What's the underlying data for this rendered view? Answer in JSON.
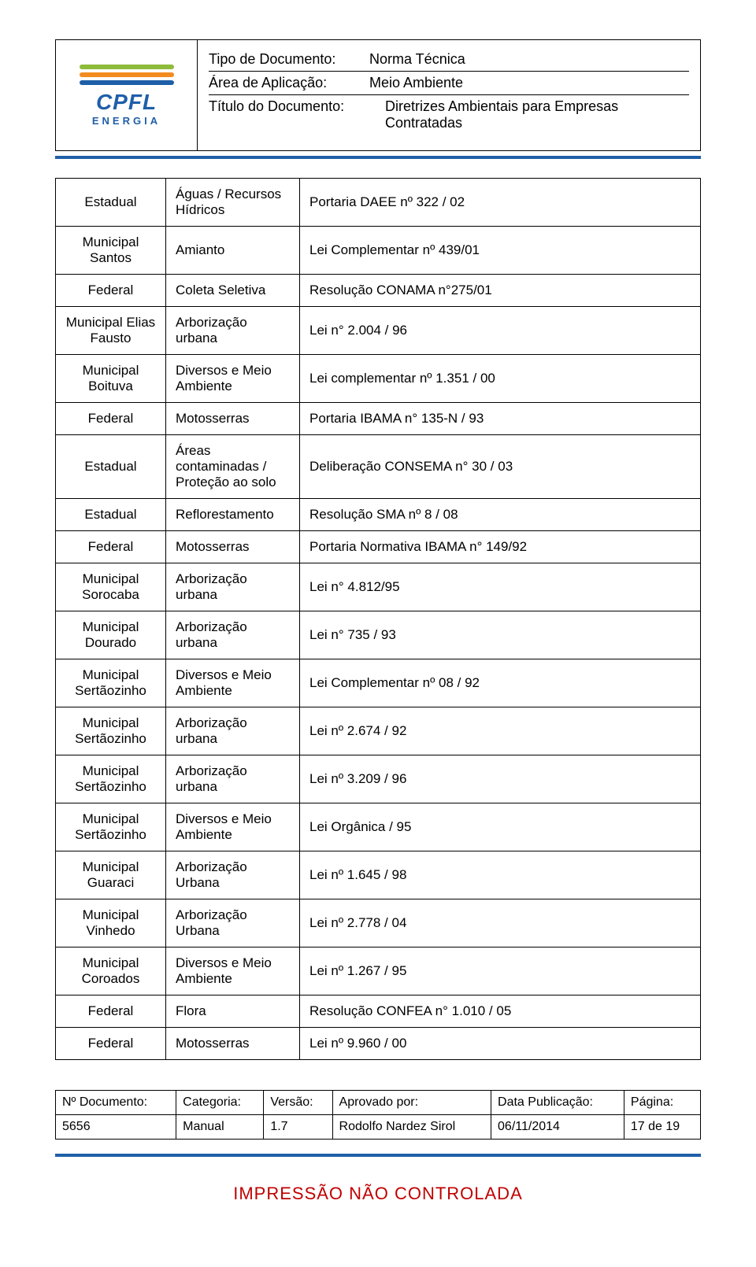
{
  "header": {
    "logo_text": "CPFL",
    "logo_sub": "ENERGIA",
    "rows": [
      {
        "label": "Tipo de Documento:",
        "value": "Norma Técnica"
      },
      {
        "label": "Área de Aplicação:",
        "value": "Meio Ambiente"
      },
      {
        "label": "Título do Documento:",
        "value": "Diretrizes Ambientais para Empresas Contratadas"
      }
    ]
  },
  "table": {
    "rows": [
      {
        "scope": "Estadual",
        "subject": "Águas / Recursos Hídricos",
        "norm": "Portaria DAEE  nº 322 / 02"
      },
      {
        "scope": "Municipal Santos",
        "subject": "Amianto",
        "norm": "Lei Complementar nº 439/01"
      },
      {
        "scope": "Federal",
        "subject": "Coleta Seletiva",
        "norm": "Resolução CONAMA n°275/01"
      },
      {
        "scope": "Municipal Elias Fausto",
        "subject": "Arborização urbana",
        "norm": "Lei n° 2.004 / 96"
      },
      {
        "scope": "Municipal Boituva",
        "subject": "Diversos e Meio Ambiente",
        "norm": "Lei complementar nº 1.351 / 00"
      },
      {
        "scope": "Federal",
        "subject": "Motosserras",
        "norm": "Portaria IBAMA n° 135-N / 93"
      },
      {
        "scope": "Estadual",
        "subject": "Áreas contaminadas / Proteção ao solo",
        "norm": "Deliberação CONSEMA n° 30 / 03"
      },
      {
        "scope": "Estadual",
        "subject": "Reflorestamento",
        "norm": "Resolução SMA nº 8 / 08"
      },
      {
        "scope": "Federal",
        "subject": "Motosserras",
        "norm": "Portaria Normativa IBAMA n° 149/92"
      },
      {
        "scope": "Municipal Sorocaba",
        "subject": "Arborização urbana",
        "norm": "Lei n° 4.812/95"
      },
      {
        "scope": "Municipal Dourado",
        "subject": "Arborização urbana",
        "norm": "Lei n° 735 / 93"
      },
      {
        "scope": "Municipal Sertãozinho",
        "subject": "Diversos e Meio Ambiente",
        "norm": "Lei Complementar nº 08 / 92"
      },
      {
        "scope": "Municipal Sertãozinho",
        "subject": "Arborização urbana",
        "norm": "Lei nº 2.674 / 92"
      },
      {
        "scope": "Municipal Sertãozinho",
        "subject": "Arborização urbana",
        "norm": "Lei nº 3.209 / 96"
      },
      {
        "scope": "Municipal Sertãozinho",
        "subject": "Diversos e Meio Ambiente",
        "norm": "Lei Orgânica / 95"
      },
      {
        "scope": "Municipal Guaraci",
        "subject": "Arborização Urbana",
        "norm": "Lei nº 1.645 / 98"
      },
      {
        "scope": "Municipal Vinhedo",
        "subject": "Arborização Urbana",
        "norm": "Lei nº 2.778 / 04"
      },
      {
        "scope": "Municipal Coroados",
        "subject": "Diversos e Meio Ambiente",
        "norm": "Lei nº 1.267 / 95"
      },
      {
        "scope": "Federal",
        "subject": "Flora",
        "norm": "Resolução CONFEA n° 1.010 / 05"
      },
      {
        "scope": "Federal",
        "subject": "Motosserras",
        "norm": "Lei nº 9.960 / 00"
      }
    ]
  },
  "footer": {
    "headers": [
      "Nº Documento:",
      "Categoria:",
      "Versão:",
      "Aprovado por:",
      "Data Publicação:",
      "Página:"
    ],
    "values": [
      "5656",
      "Manual",
      "1.7",
      "Rodolfo Nardez Sirol",
      "06/11/2014",
      "17 de 19"
    ]
  },
  "stamp": "IMPRESSÃO NÃO CONTROLADA"
}
